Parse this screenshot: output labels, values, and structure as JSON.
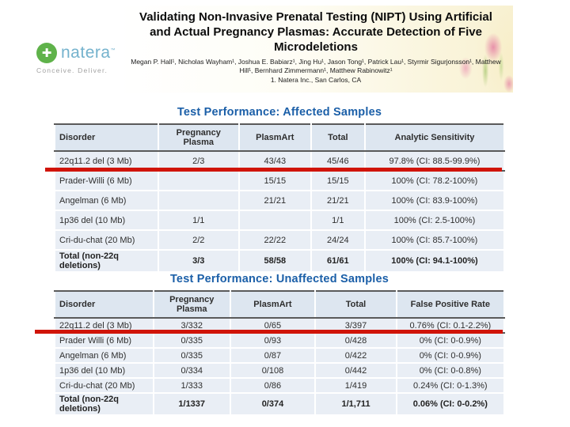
{
  "header": {
    "logo": {
      "brand": "natera",
      "trademark": "™",
      "tagline": "Conceive. Deliver."
    },
    "title": "Validating Non-Invasive Prenatal Testing (NIPT) Using Artificial and Actual Pregnancy Plasmas: Accurate Detection of Five Microdeletions",
    "authors": "Megan P. Hall¹, Nicholas Wayham¹, Joshua E. Babiarz¹, Jing Hu¹, Jason Tong¹, Patrick Lau¹, Styrmir Sigurjonsson¹, Matthew Hill¹, Bernhard Zimmermann¹, Matthew Rabinowitz¹",
    "affiliation": "1. Natera Inc., San Carlos, CA"
  },
  "accent_colors": {
    "table_title_blue": "#1b5fa8",
    "annotation_red": "#d01408",
    "logo_green": "#5fb24a"
  },
  "tables": [
    {
      "title": "Test Performance: Affected Samples",
      "headers": [
        "Disorder",
        "Pregnancy Plasma",
        "PlasmArt",
        "Total",
        "Analytic Sensitivity"
      ],
      "rows": [
        {
          "cells": [
            "22q11.2 del (3 Mb)",
            "2/3",
            "43/43",
            "45/46",
            "97.8% (CI: 88.5-99.9%)"
          ],
          "highlight": true,
          "bold": false
        },
        {
          "cells": [
            "Prader-Willi (6 Mb)",
            "",
            "15/15",
            "15/15",
            "100% (CI: 78.2-100%)"
          ],
          "highlight": false,
          "bold": false
        },
        {
          "cells": [
            "Angelman (6 Mb)",
            "",
            "21/21",
            "21/21",
            "100% (CI: 83.9-100%)"
          ],
          "highlight": false,
          "bold": false
        },
        {
          "cells": [
            "1p36 del (10 Mb)",
            "1/1",
            "",
            "1/1",
            "100% (CI: 2.5-100%)"
          ],
          "highlight": false,
          "bold": false
        },
        {
          "cells": [
            "Cri-du-chat (20 Mb)",
            "2/2",
            "22/22",
            "24/24",
            "100% (CI: 85.7-100%)"
          ],
          "highlight": false,
          "bold": false
        },
        {
          "cells": [
            "Total (non-22q deletions)",
            "3/3",
            "58/58",
            "61/61",
            "100% (CI: 94.1-100%)"
          ],
          "highlight": false,
          "bold": true
        }
      ]
    },
    {
      "title": "Test Performance: Unaffected Samples",
      "headers": [
        "Disorder",
        "Pregnancy Plasma",
        "PlasmArt",
        "Total",
        "False Positive Rate"
      ],
      "rows": [
        {
          "cells": [
            "22q11.2 del (3 Mb)",
            "3/332",
            "0/65",
            "3/397",
            "0.76% (CI: 0.1-2.2%)"
          ],
          "highlight": true,
          "bold": false
        },
        {
          "cells": [
            "Prader Willi (6 Mb)",
            "0/335",
            "0/93",
            "0/428",
            "0% (CI: 0-0.9%)"
          ],
          "highlight": false,
          "bold": false
        },
        {
          "cells": [
            "Angelman (6 Mb)",
            "0/335",
            "0/87",
            "0/422",
            "0% (CI: 0-0.9%)"
          ],
          "highlight": false,
          "bold": false
        },
        {
          "cells": [
            "1p36 del (10 Mb)",
            "0/334",
            "0/108",
            "0/442",
            "0% (CI: 0-0.8%)"
          ],
          "highlight": false,
          "bold": false
        },
        {
          "cells": [
            "Cri-du-chat (20 Mb)",
            "1/333",
            "0/86",
            "1/419",
            "0.24% (CI: 0-1.3%)"
          ],
          "highlight": false,
          "bold": false
        },
        {
          "cells": [
            "Total (non-22q deletions)",
            "1/1337",
            "0/374",
            "1/1,711",
            "0.06% (CI: 0-0.2%)"
          ],
          "highlight": false,
          "bold": true
        }
      ]
    }
  ]
}
